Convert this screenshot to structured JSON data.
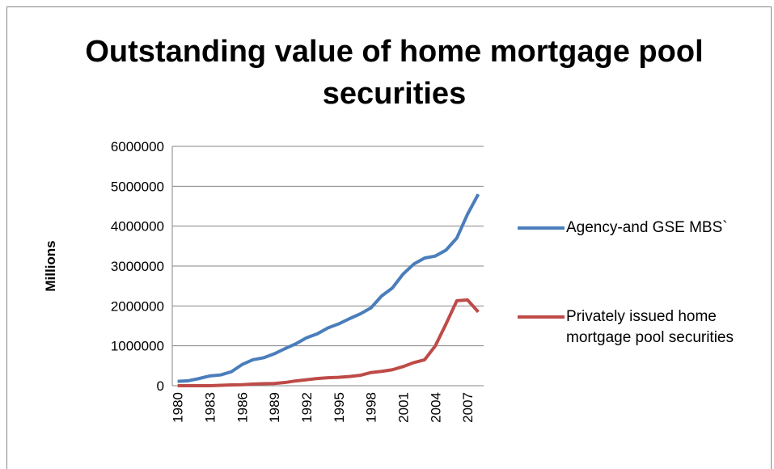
{
  "chart_data": {
    "type": "line",
    "title": "Outstanding value of home mortgage pool securities",
    "y_label": "Millions",
    "categories": [
      "1980",
      null,
      null,
      "1983",
      null,
      null,
      "1986",
      null,
      null,
      "1989",
      null,
      null,
      "1992",
      null,
      null,
      "1995",
      null,
      null,
      "1998",
      null,
      null,
      "2001",
      null,
      null,
      "2004",
      null,
      null,
      "2007",
      null
    ],
    "series": [
      {
        "name": "Agency-and GSE MBS`",
        "color": "#4a7ebb",
        "values": [
          110000,
          125000,
          180000,
          245000,
          270000,
          350000,
          530000,
          650000,
          700000,
          800000,
          930000,
          1050000,
          1200000,
          1300000,
          1450000,
          1550000,
          1680000,
          1800000,
          1950000,
          2250000,
          2450000,
          2800000,
          3050000,
          3200000,
          3250000,
          3400000,
          3700000,
          4300000,
          4800000
        ]
      },
      {
        "name": "Privately issued home mortgage pool securities",
        "color": "#be4b48",
        "values": [
          0,
          0,
          0,
          0,
          10000,
          20000,
          25000,
          40000,
          50000,
          55000,
          80000,
          120000,
          150000,
          180000,
          200000,
          210000,
          230000,
          260000,
          330000,
          360000,
          400000,
          480000,
          580000,
          650000,
          1000000,
          1550000,
          2130000,
          2150000,
          1850000
        ]
      }
    ],
    "ylim": [
      0,
      6000000
    ],
    "yticks": [
      0,
      1000000,
      2000000,
      3000000,
      4000000,
      5000000,
      6000000
    ],
    "grid": true,
    "legend": "right"
  }
}
